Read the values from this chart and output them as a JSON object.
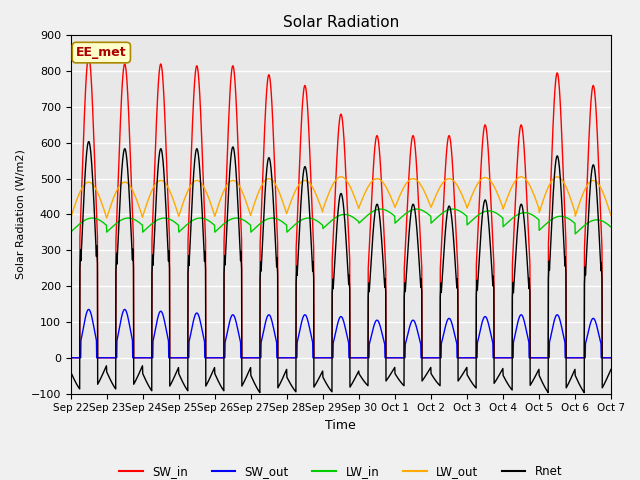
{
  "title": "Solar Radiation",
  "xlabel": "Time",
  "ylabel": "Solar Radiation (W/m2)",
  "ylim": [
    -100,
    900
  ],
  "annotation": "EE_met",
  "background_color": "#e8e8e8",
  "grid_color": "white",
  "series": {
    "SW_in": {
      "color": "#ff0000",
      "lw": 1.0
    },
    "SW_out": {
      "color": "#0000ff",
      "lw": 1.0
    },
    "LW_in": {
      "color": "#00cc00",
      "lw": 1.0
    },
    "LW_out": {
      "color": "#ffaa00",
      "lw": 1.0
    },
    "Rnet": {
      "color": "#000000",
      "lw": 1.0
    }
  },
  "xtick_labels": [
    "Sep 22",
    "Sep 23",
    "Sep 24",
    "Sep 25",
    "Sep 26",
    "Sep 27",
    "Sep 28",
    "Sep 29",
    "Sep 30",
    "Oct 1",
    "Oct 2",
    "Oct 3",
    "Oct 4",
    "Oct 5",
    "Oct 6",
    "Oct 7"
  ],
  "n_days": 15,
  "points_per_day": 144,
  "sw_peaks": [
    840,
    820,
    820,
    815,
    815,
    790,
    760,
    680,
    620,
    620,
    620,
    650,
    650,
    795,
    760
  ],
  "sw_out_peaks": [
    135,
    135,
    130,
    125,
    120,
    120,
    120,
    115,
    105,
    105,
    110,
    115,
    120,
    120,
    110
  ],
  "lw_in_base": [
    360,
    360,
    360,
    360,
    360,
    360,
    360,
    370,
    385,
    385,
    385,
    380,
    375,
    365,
    355
  ],
  "lw_out_base": [
    390,
    390,
    395,
    395,
    395,
    400,
    405,
    415,
    420,
    420,
    420,
    418,
    415,
    405,
    395
  ],
  "lw_out_amp": [
    100,
    100,
    100,
    100,
    100,
    100,
    90,
    90,
    80,
    80,
    80,
    85,
    90,
    100,
    100
  ],
  "yticks": [
    -100,
    0,
    100,
    200,
    300,
    400,
    500,
    600,
    700,
    800,
    900
  ]
}
